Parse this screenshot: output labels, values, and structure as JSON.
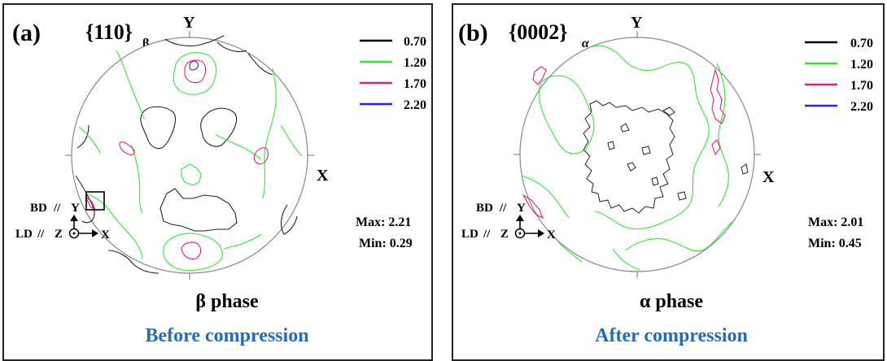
{
  "panels": [
    {
      "label": "(a)",
      "plane": "{110}",
      "plane_sub": "β",
      "axis_y": "Y",
      "axis_x": "X",
      "legend": [
        {
          "value": "0.70",
          "color": "#000000"
        },
        {
          "value": "1.20",
          "color": "#32e632"
        },
        {
          "value": "1.70",
          "color": "#e61e78"
        },
        {
          "value": "2.20",
          "color": "#1e28e6"
        }
      ],
      "max": "Max: 2.21",
      "min": "Min: 0.29",
      "frame": {
        "bd": "BD",
        "ld": "LD",
        "y": "Y",
        "z": "Z",
        "x": "X",
        "sep": "//"
      },
      "phase": "β phase",
      "caption": "Before compression"
    },
    {
      "label": "(b)",
      "plane": "{0002}",
      "plane_sub": "α",
      "axis_y": "Y",
      "axis_x": "X",
      "legend": [
        {
          "value": "0.70",
          "color": "#000000"
        },
        {
          "value": "1.20",
          "color": "#32e632"
        },
        {
          "value": "1.70",
          "color": "#e61e78"
        },
        {
          "value": "2.20",
          "color": "#1e28e6"
        }
      ],
      "max": "Max: 2.01",
      "min": "Min: 0.45",
      "frame": {
        "bd": "BD",
        "ld": "LD",
        "y": "Y",
        "z": "Z",
        "x": "X",
        "sep": "//"
      },
      "phase": "α phase",
      "caption": "After compression"
    }
  ],
  "colors": {
    "caption": "#1f6fb8",
    "circle": "#888888",
    "contour_low": "#000000",
    "contour_mid": "#32e632",
    "contour_high": "#e61e78",
    "contour_peak": "#1e28e6"
  }
}
